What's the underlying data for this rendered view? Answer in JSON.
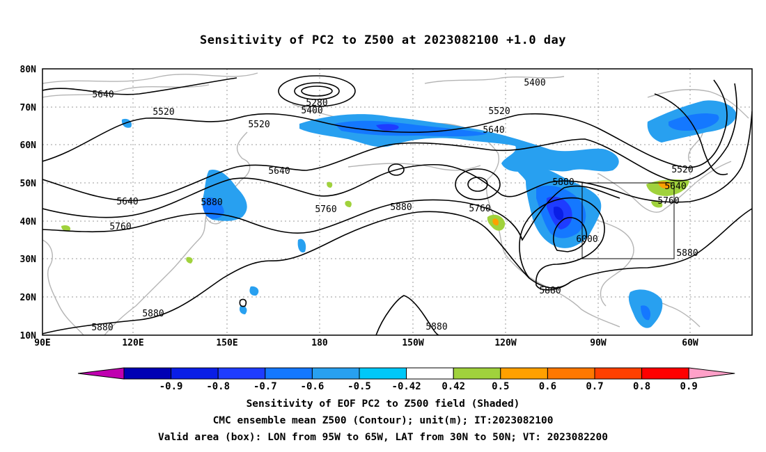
{
  "title": "Sensitivity of PC2 to Z500 at 2023082100 +1.0 day",
  "lat_labels": [
    "80N",
    "70N",
    "60N",
    "50N",
    "40N",
    "30N",
    "20N",
    "10N"
  ],
  "lon_labels": [
    "90E",
    "120E",
    "150E",
    "180",
    "150W",
    "120W",
    "90W",
    "60W"
  ],
  "contour_labels": [
    "5280",
    "5400",
    "5400",
    "5520",
    "5520",
    "5520",
    "5520",
    "5640",
    "5640",
    "5640",
    "5640",
    "5640",
    "5760",
    "5760",
    "5760",
    "5760",
    "5880",
    "5880",
    "5880",
    "5880",
    "5880",
    "5880",
    "5880",
    "6000"
  ],
  "colorbar": {
    "labels": [
      "-0.9",
      "-0.8",
      "-0.7",
      "-0.6",
      "-0.5",
      "-0.42",
      "0.42",
      "0.5",
      "0.6",
      "0.7",
      "0.8",
      "0.9"
    ],
    "colors": [
      "#c000b0",
      "#0000b4",
      "#0a1ee6",
      "#1e3cff",
      "#1478ff",
      "#28a0f0",
      "#00c8f8",
      "#ffffff",
      "#a0d23c",
      "#ffa000",
      "#ff7800",
      "#ff4000",
      "#ff0000",
      "#ffa0c8"
    ]
  },
  "captions": {
    "line1": "Sensitivity of EOF PC2 to Z500 field (Shaded)",
    "line2": "CMC ensemble mean Z500 (Contour); unit(m); IT:2023082100",
    "line3": "Valid area (box): LON from 95W to 65W, LAT from 30N to 50N; VT: 2023082200"
  }
}
